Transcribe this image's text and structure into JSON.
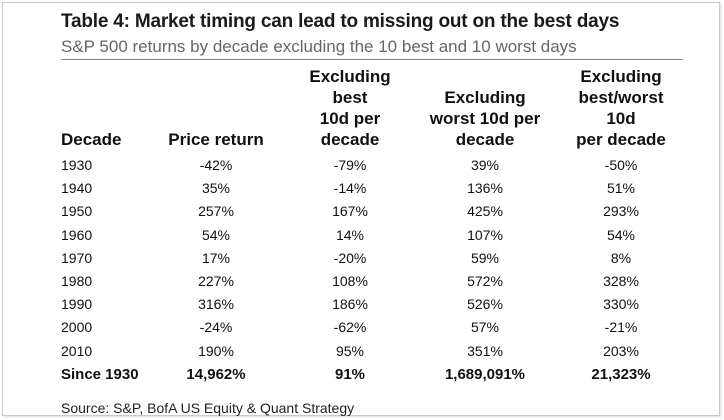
{
  "title": "Table 4: Market timing can lead to missing out on the best days",
  "subtitle": "S&P 500 returns by decade excluding the 10 best and 10 worst days",
  "table": {
    "headers": [
      [
        "Decade"
      ],
      [
        "Price return"
      ],
      [
        "Excluding",
        "best",
        "10d per",
        "decade"
      ],
      [
        "Excluding",
        "worst 10d per",
        "decade"
      ],
      [
        "Excluding",
        "best/worst",
        "10d",
        "per decade"
      ]
    ],
    "rows": [
      [
        "1930",
        "-42%",
        "-79%",
        "39%",
        "-50%"
      ],
      [
        "1940",
        "35%",
        "-14%",
        "136%",
        "51%"
      ],
      [
        "1950",
        "257%",
        "167%",
        "425%",
        "293%"
      ],
      [
        "1960",
        "54%",
        "14%",
        "107%",
        "54%"
      ],
      [
        "1970",
        "17%",
        "-20%",
        "59%",
        "8%"
      ],
      [
        "1980",
        "227%",
        "108%",
        "572%",
        "328%"
      ],
      [
        "1990",
        "316%",
        "186%",
        "526%",
        "330%"
      ],
      [
        "2000",
        "-24%",
        "-62%",
        "57%",
        "-21%"
      ],
      [
        "2010",
        "190%",
        "95%",
        "351%",
        "203%"
      ]
    ],
    "total": [
      "Since 1930",
      "14,962%",
      "91%",
      "1,689,091%",
      "21,323%"
    ]
  },
  "source": "Source: S&P, BofA US Equity & Quant Strategy"
}
